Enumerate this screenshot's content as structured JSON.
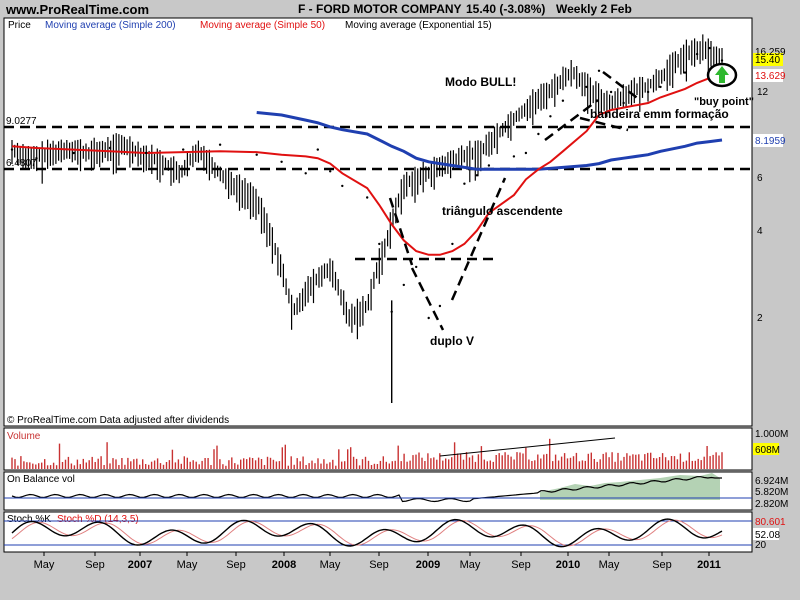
{
  "header": {
    "site": "www.ProRealTime.com",
    "title": "F - FORD MOTOR COMPANY",
    "price": "15.40 (-3.08%)",
    "period": "Weekly 2 Feb"
  },
  "legend": {
    "price": "Price",
    "ma200": "Moving average (Simple 200)",
    "ma50": "Moving average (Simple 50)",
    "ema15": "Moving average (Exponential 15)"
  },
  "colors": {
    "background": "#ffffff",
    "frame": "#c8c8c8",
    "ma200": "#1f3fb0",
    "ma50": "#e01010",
    "volume": "#c83232",
    "obv_fill": "#b4d2b4",
    "stoch_line": "#1f3fb0"
  },
  "annotations": {
    "bull": "Modo BULL!",
    "buy": "\"buy point\"",
    "flag": "bandeira emm formação",
    "triangle": "triângulo ascendente",
    "v": "duplo V",
    "footer": "© ProRealTime.com  Data adjusted after dividends"
  },
  "levels": {
    "upper": "9.0277",
    "lower": "6.4807"
  },
  "right_axis": {
    "labels": [
      "16.259",
      "15.40",
      "13.629",
      "12",
      "8.1959",
      "6",
      "4",
      "2"
    ],
    "current_price": "15.40",
    "ma50_value": "13.629",
    "ma200_value": "8.1959"
  },
  "panels": {
    "volume": {
      "label": "Volume",
      "ticks": [
        "1.000M",
        "608M"
      ]
    },
    "obv": {
      "label": "On Balance vol",
      "ticks": [
        "6.924M",
        "5.820M",
        "2.820M"
      ]
    },
    "stoch": {
      "label": "Stoch %K",
      "label2": "Stoch %D (14,3,5)",
      "ticks": [
        "80.601",
        "52.08",
        "20"
      ]
    }
  },
  "x_axis": [
    "May",
    "Sep",
    "2007",
    "May",
    "Sep",
    "2008",
    "May",
    "Sep",
    "2009",
    "May",
    "Sep",
    "2010",
    "May",
    "Sep",
    "2011"
  ],
  "chart_data": {
    "type": "line",
    "title": "F - FORD MOTOR COMPANY",
    "scale": "log",
    "ylim": [
      1.0,
      17.0
    ],
    "x": [
      "2006-04",
      "2006-06",
      "2006-09",
      "2006-12",
      "2007-03",
      "2007-06",
      "2007-09",
      "2007-12",
      "2008-02",
      "2008-04",
      "2008-05",
      "2008-06",
      "2008-07",
      "2008-09",
      "2008-10",
      "2008-11",
      "2008-12",
      "2009-01",
      "2009-02",
      "2009-03",
      "2009-04",
      "2009-05",
      "2009-06",
      "2009-07",
      "2009-09",
      "2009-10",
      "2009-11",
      "2009-12",
      "2010-01",
      "2010-03",
      "2010-04",
      "2010-05",
      "2010-06",
      "2010-08",
      "2010-09",
      "2010-11",
      "2010-12",
      "2011-01",
      "2011-02"
    ],
    "series": [
      {
        "name": "Price",
        "values": [
          7.6,
          7.1,
          7.4,
          7.7,
          7.4,
          7.6,
          7.9,
          7.3,
          6.9,
          6.3,
          7.6,
          6.4,
          5.7,
          5.2,
          3.6,
          2.1,
          2.6,
          3.0,
          2.0,
          2.2,
          3.6,
          5.8,
          6.2,
          6.7,
          7.2,
          7.4,
          8.6,
          9.9,
          11.2,
          12.5,
          14.2,
          12.0,
          11.0,
          12.0,
          12.5,
          14.0,
          16.2,
          17.0,
          15.4
        ]
      },
      {
        "name": "Moving average (Simple 200)",
        "values": [
          null,
          null,
          null,
          null,
          null,
          null,
          null,
          10.2,
          10.0,
          9.6,
          9.4,
          9.1,
          8.9,
          8.6,
          8.2,
          7.8,
          7.5,
          7.1,
          6.9,
          6.8,
          6.7,
          6.6,
          6.5,
          6.5,
          6.5,
          6.5,
          6.5,
          6.55,
          6.6,
          6.7,
          6.8,
          7.0,
          7.1,
          7.3,
          7.5,
          7.8,
          8.0,
          8.1,
          8.2
        ]
      },
      {
        "name": "Moving average (Simple 50)",
        "values": [
          7.8,
          7.7,
          7.6,
          7.5,
          7.4,
          7.45,
          7.5,
          7.45,
          7.3,
          7.2,
          7.1,
          6.8,
          6.3,
          5.6,
          4.9,
          4.2,
          3.7,
          3.4,
          3.3,
          3.3,
          3.4,
          3.6,
          4.0,
          4.6,
          5.3,
          6.0,
          6.5,
          6.9,
          7.5,
          8.8,
          10.0,
          10.4,
          10.6,
          11.0,
          11.5,
          12.3,
          12.9,
          13.4,
          13.6
        ]
      }
    ],
    "ylabel": "Price"
  }
}
